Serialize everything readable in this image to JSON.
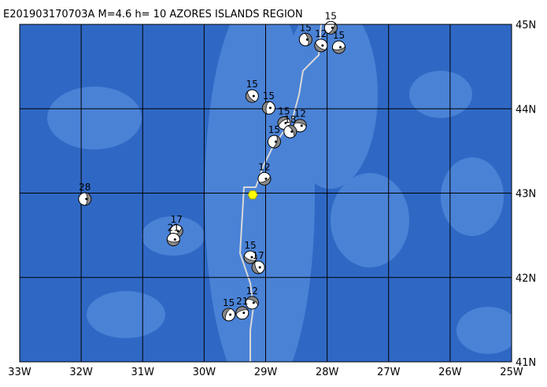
{
  "map": {
    "title": "E201903170703A M=4.6 h= 10 AZORES ISLANDS REGION",
    "xlim": [
      -33,
      -25
    ],
    "ylim": [
      41,
      45
    ],
    "xticks": [
      {
        "value": -33,
        "label": "33W"
      },
      {
        "value": -32,
        "label": "32W"
      },
      {
        "value": -31,
        "label": "31W"
      },
      {
        "value": -30,
        "label": "30W"
      },
      {
        "value": -29,
        "label": "29W"
      },
      {
        "value": -28,
        "label": "28W"
      },
      {
        "value": -27,
        "label": "27W"
      },
      {
        "value": -26,
        "label": "26W"
      },
      {
        "value": -25,
        "label": "25W"
      }
    ],
    "yticks": [
      {
        "value": 41,
        "label": "41N"
      },
      {
        "value": 42,
        "label": "42N"
      },
      {
        "value": 43,
        "label": "43N"
      },
      {
        "value": 44,
        "label": "44N"
      },
      {
        "value": 45,
        "label": "45N"
      }
    ],
    "epicenter": {
      "lon": -29.21,
      "lat": 42.98
    },
    "events": [
      {
        "lon": -31.94,
        "lat": 42.93,
        "depth": 28
      },
      {
        "lon": -30.45,
        "lat": 42.55,
        "depth": 17
      },
      {
        "lon": -30.5,
        "lat": 42.45,
        "depth": 21
      },
      {
        "lon": -29.22,
        "lat": 44.15,
        "depth": 15
      },
      {
        "lon": -28.95,
        "lat": 44.01,
        "depth": 15
      },
      {
        "lon": -28.7,
        "lat": 43.83,
        "depth": 15
      },
      {
        "lon": -28.44,
        "lat": 43.8,
        "depth": 12
      },
      {
        "lon": -28.6,
        "lat": 43.73,
        "depth": 18
      },
      {
        "lon": -28.86,
        "lat": 43.61,
        "depth": 15
      },
      {
        "lon": -29.02,
        "lat": 43.17,
        "depth": 12
      },
      {
        "lon": -29.25,
        "lat": 42.24,
        "depth": 15
      },
      {
        "lon": -29.12,
        "lat": 42.12,
        "depth": 17
      },
      {
        "lon": -29.6,
        "lat": 41.56,
        "depth": 15
      },
      {
        "lon": -29.38,
        "lat": 41.58,
        "depth": 21
      },
      {
        "lon": -29.22,
        "lat": 41.7,
        "depth": 12
      },
      {
        "lon": -28.35,
        "lat": 44.82,
        "depth": 15
      },
      {
        "lon": -27.94,
        "lat": 44.96,
        "depth": 15
      },
      {
        "lon": -27.81,
        "lat": 44.73,
        "depth": 15
      },
      {
        "lon": -28.1,
        "lat": 44.75,
        "depth": 12
      }
    ]
  }
}
